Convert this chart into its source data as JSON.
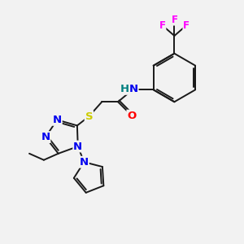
{
  "bg_color": "#f2f2f2",
  "bond_color": "#1a1a1a",
  "atom_colors": {
    "N": "#0000ee",
    "S": "#cccc00",
    "O": "#ff0000",
    "F": "#ff00ff",
    "H": "#008080",
    "C": "#1a1a1a"
  },
  "figsize": [
    3.0,
    3.0
  ],
  "dpi": 100
}
